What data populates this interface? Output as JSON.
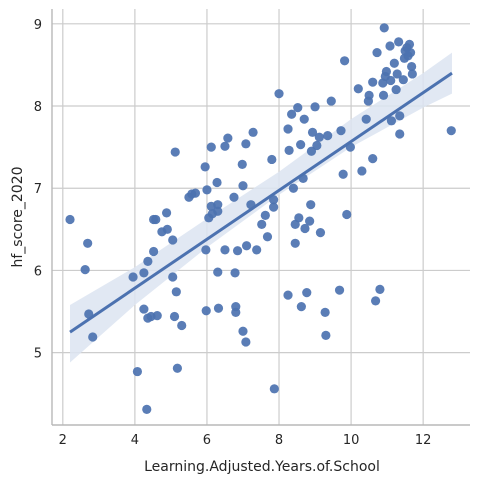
{
  "chart_data": {
    "type": "scatter",
    "title": "",
    "xlabel": "Learning.Adjusted.Years.of.School",
    "ylabel": "hf_score_2020",
    "xlim": [
      1.7,
      13.3
    ],
    "ylim": [
      4.12,
      9.18
    ],
    "xticks": [
      2,
      4,
      6,
      8,
      10,
      12
    ],
    "yticks": [
      5,
      6,
      7,
      8,
      9
    ],
    "grid": true,
    "colors": {
      "points": "#4c72b0",
      "regression_line": "#4c72b0",
      "confidence_band": "#dce4f1",
      "grid": "#cccccc",
      "spine": "#b8b8b8",
      "text": "#262626"
    },
    "regression": {
      "x": [
        2.2,
        12.8
      ],
      "y": [
        5.25,
        8.4
      ],
      "band": {
        "x": [
          2.2,
          4,
          6,
          8,
          10,
          12,
          12.8
        ],
        "lower": [
          4.88,
          5.58,
          6.28,
          6.92,
          7.5,
          7.98,
          8.15
        ],
        "upper": [
          5.58,
          6.04,
          6.63,
          7.2,
          7.84,
          8.4,
          8.65
        ]
      }
    },
    "points": [
      {
        "x": 2.2,
        "y": 6.62
      },
      {
        "x": 2.62,
        "y": 6.01
      },
      {
        "x": 2.69,
        "y": 6.33
      },
      {
        "x": 2.72,
        "y": 5.47
      },
      {
        "x": 2.83,
        "y": 5.19
      },
      {
        "x": 3.95,
        "y": 5.92
      },
      {
        "x": 4.07,
        "y": 4.77
      },
      {
        "x": 4.25,
        "y": 5.97
      },
      {
        "x": 4.25,
        "y": 5.53
      },
      {
        "x": 4.33,
        "y": 4.31
      },
      {
        "x": 4.36,
        "y": 6.11
      },
      {
        "x": 4.36,
        "y": 5.42
      },
      {
        "x": 4.45,
        "y": 5.44
      },
      {
        "x": 4.52,
        "y": 6.23
      },
      {
        "x": 4.52,
        "y": 6.62
      },
      {
        "x": 4.58,
        "y": 6.62
      },
      {
        "x": 4.62,
        "y": 5.45
      },
      {
        "x": 4.75,
        "y": 6.47
      },
      {
        "x": 4.88,
        "y": 6.7
      },
      {
        "x": 4.9,
        "y": 6.5
      },
      {
        "x": 5.05,
        "y": 6.37
      },
      {
        "x": 5.05,
        "y": 5.92
      },
      {
        "x": 5.1,
        "y": 5.44
      },
      {
        "x": 5.12,
        "y": 7.44
      },
      {
        "x": 5.15,
        "y": 5.74
      },
      {
        "x": 5.18,
        "y": 4.81
      },
      {
        "x": 5.3,
        "y": 5.33
      },
      {
        "x": 5.5,
        "y": 6.89
      },
      {
        "x": 5.58,
        "y": 6.93
      },
      {
        "x": 5.68,
        "y": 6.94
      },
      {
        "x": 5.95,
        "y": 7.26
      },
      {
        "x": 5.97,
        "y": 6.25
      },
      {
        "x": 5.98,
        "y": 5.51
      },
      {
        "x": 6.0,
        "y": 6.98
      },
      {
        "x": 6.05,
        "y": 6.64
      },
      {
        "x": 6.12,
        "y": 7.5
      },
      {
        "x": 6.12,
        "y": 6.78
      },
      {
        "x": 6.15,
        "y": 6.69
      },
      {
        "x": 6.28,
        "y": 7.07
      },
      {
        "x": 6.3,
        "y": 6.8
      },
      {
        "x": 6.3,
        "y": 6.72
      },
      {
        "x": 6.3,
        "y": 5.98
      },
      {
        "x": 6.32,
        "y": 5.54
      },
      {
        "x": 6.5,
        "y": 7.51
      },
      {
        "x": 6.5,
        "y": 6.25
      },
      {
        "x": 6.58,
        "y": 7.61
      },
      {
        "x": 6.75,
        "y": 6.89
      },
      {
        "x": 6.78,
        "y": 5.97
      },
      {
        "x": 6.8,
        "y": 5.56
      },
      {
        "x": 6.8,
        "y": 5.49
      },
      {
        "x": 6.85,
        "y": 6.24
      },
      {
        "x": 6.98,
        "y": 7.29
      },
      {
        "x": 7.0,
        "y": 7.03
      },
      {
        "x": 7.0,
        "y": 5.26
      },
      {
        "x": 7.08,
        "y": 7.54
      },
      {
        "x": 7.08,
        "y": 5.13
      },
      {
        "x": 7.1,
        "y": 6.3
      },
      {
        "x": 7.22,
        "y": 6.8
      },
      {
        "x": 7.28,
        "y": 7.68
      },
      {
        "x": 7.38,
        "y": 6.25
      },
      {
        "x": 7.52,
        "y": 6.56
      },
      {
        "x": 7.62,
        "y": 6.67
      },
      {
        "x": 7.68,
        "y": 6.41
      },
      {
        "x": 7.8,
        "y": 7.35
      },
      {
        "x": 7.85,
        "y": 6.86
      },
      {
        "x": 7.85,
        "y": 6.77
      },
      {
        "x": 7.87,
        "y": 4.56
      },
      {
        "x": 8.0,
        "y": 8.15
      },
      {
        "x": 8.25,
        "y": 7.72
      },
      {
        "x": 8.25,
        "y": 5.7
      },
      {
        "x": 8.28,
        "y": 7.46
      },
      {
        "x": 8.35,
        "y": 7.9
      },
      {
        "x": 8.4,
        "y": 7.0
      },
      {
        "x": 8.45,
        "y": 6.56
      },
      {
        "x": 8.45,
        "y": 6.33
      },
      {
        "x": 8.52,
        "y": 7.98
      },
      {
        "x": 8.55,
        "y": 6.64
      },
      {
        "x": 8.6,
        "y": 7.53
      },
      {
        "x": 8.62,
        "y": 5.56
      },
      {
        "x": 8.67,
        "y": 7.12
      },
      {
        "x": 8.7,
        "y": 7.84
      },
      {
        "x": 8.72,
        "y": 6.51
      },
      {
        "x": 8.77,
        "y": 5.73
      },
      {
        "x": 8.85,
        "y": 6.6
      },
      {
        "x": 8.88,
        "y": 6.8
      },
      {
        "x": 8.9,
        "y": 7.45
      },
      {
        "x": 8.93,
        "y": 7.68
      },
      {
        "x": 9.0,
        "y": 7.99
      },
      {
        "x": 9.05,
        "y": 7.52
      },
      {
        "x": 9.12,
        "y": 7.62
      },
      {
        "x": 9.15,
        "y": 6.46
      },
      {
        "x": 9.28,
        "y": 5.49
      },
      {
        "x": 9.3,
        "y": 5.21
      },
      {
        "x": 9.35,
        "y": 7.64
      },
      {
        "x": 9.45,
        "y": 8.06
      },
      {
        "x": 9.68,
        "y": 5.76
      },
      {
        "x": 9.72,
        "y": 7.7
      },
      {
        "x": 9.78,
        "y": 7.17
      },
      {
        "x": 9.82,
        "y": 8.55
      },
      {
        "x": 9.88,
        "y": 6.68
      },
      {
        "x": 9.98,
        "y": 7.5
      },
      {
        "x": 10.2,
        "y": 8.21
      },
      {
        "x": 10.3,
        "y": 7.21
      },
      {
        "x": 10.42,
        "y": 7.84
      },
      {
        "x": 10.48,
        "y": 8.06
      },
      {
        "x": 10.5,
        "y": 8.13
      },
      {
        "x": 10.6,
        "y": 7.36
      },
      {
        "x": 10.6,
        "y": 8.29
      },
      {
        "x": 10.68,
        "y": 5.63
      },
      {
        "x": 10.72,
        "y": 8.65
      },
      {
        "x": 10.8,
        "y": 5.77
      },
      {
        "x": 10.88,
        "y": 8.28
      },
      {
        "x": 10.9,
        "y": 8.13
      },
      {
        "x": 10.92,
        "y": 8.95
      },
      {
        "x": 10.95,
        "y": 8.36
      },
      {
        "x": 10.98,
        "y": 8.42
      },
      {
        "x": 11.08,
        "y": 8.73
      },
      {
        "x": 11.1,
        "y": 8.31
      },
      {
        "x": 11.12,
        "y": 7.82
      },
      {
        "x": 11.2,
        "y": 8.52
      },
      {
        "x": 11.25,
        "y": 8.2
      },
      {
        "x": 11.28,
        "y": 8.39
      },
      {
        "x": 11.32,
        "y": 8.78
      },
      {
        "x": 11.35,
        "y": 7.66
      },
      {
        "x": 11.35,
        "y": 7.88
      },
      {
        "x": 11.45,
        "y": 8.32
      },
      {
        "x": 11.48,
        "y": 8.58
      },
      {
        "x": 11.5,
        "y": 8.67
      },
      {
        "x": 11.55,
        "y": 8.71
      },
      {
        "x": 11.58,
        "y": 8.61
      },
      {
        "x": 11.62,
        "y": 8.75
      },
      {
        "x": 11.65,
        "y": 8.65
      },
      {
        "x": 11.68,
        "y": 8.48
      },
      {
        "x": 11.7,
        "y": 8.39
      },
      {
        "x": 12.78,
        "y": 7.7
      }
    ]
  }
}
